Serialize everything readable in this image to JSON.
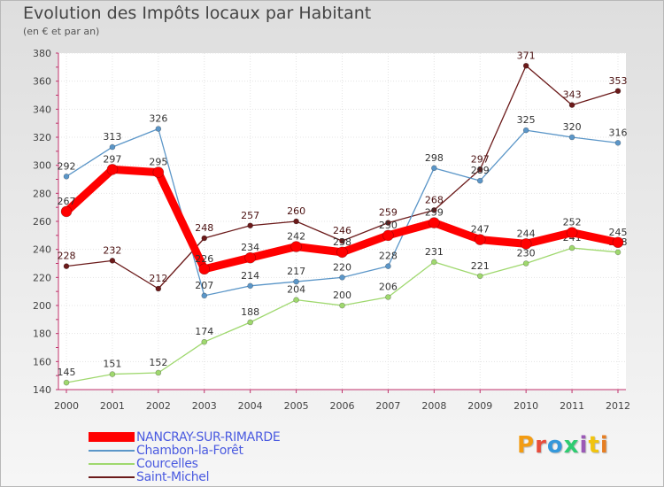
{
  "page": {
    "title": "Evolution des Impôts locaux par Habitant",
    "subtitle": "(en € et par an)"
  },
  "logo": {
    "text": "Proxiti",
    "colors": [
      "#f39c12",
      "#e74c3c",
      "#3498db",
      "#2ecc71",
      "#9b59b6",
      "#f1c40f",
      "#e67e22"
    ]
  },
  "chart_data": {
    "type": "line",
    "title": "Evolution des Impôts locaux par Habitant",
    "subtitle": "(en € et par an)",
    "xlabel": "",
    "ylabel": "",
    "x": [
      "2000",
      "2001",
      "2002",
      "2003",
      "2004",
      "2005",
      "2006",
      "2007",
      "2008",
      "2009",
      "2010",
      "2011",
      "2012"
    ],
    "ylim": [
      140,
      380
    ],
    "yticks": [
      140,
      160,
      180,
      200,
      220,
      240,
      260,
      280,
      300,
      320,
      340,
      360,
      380
    ],
    "grid": true,
    "legend_position": "bottom-left",
    "series": [
      {
        "name": "Saint-Michel",
        "color": "#6b1a1a",
        "values": [
          228,
          232,
          212,
          248,
          257,
          260,
          246,
          259,
          268,
          297,
          371,
          343,
          353
        ]
      },
      {
        "name": "Courcelles",
        "color": "#9fd86e",
        "values": [
          145,
          151,
          152,
          174,
          188,
          204,
          200,
          206,
          231,
          221,
          230,
          241,
          238
        ]
      },
      {
        "name": "Chambon-la-Forêt",
        "color": "#5b96c8",
        "values": [
          292,
          313,
          326,
          207,
          214,
          217,
          220,
          228,
          298,
          289,
          325,
          320,
          316
        ]
      },
      {
        "name": "NANCRAY-SUR-RIMARDE",
        "color": "#ff0000",
        "values": [
          267,
          297,
          295,
          226,
          234,
          242,
          238,
          250,
          259,
          247,
          244,
          252,
          245
        ]
      }
    ],
    "legend_order": [
      "NANCRAY-SUR-RIMARDE",
      "Chambon-la-Forêt",
      "Courcelles",
      "Saint-Michel"
    ]
  }
}
